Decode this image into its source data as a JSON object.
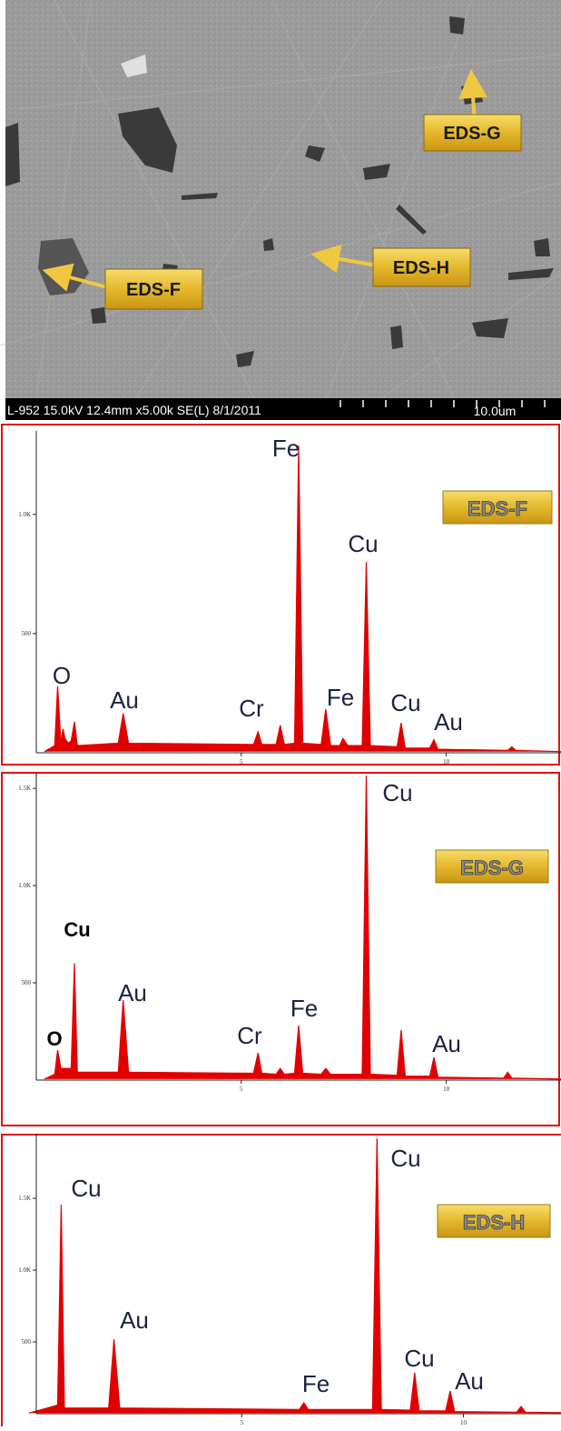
{
  "sem_image": {
    "labels": [
      "EDS-G",
      "EDS-H",
      "EDS-F"
    ],
    "caption": "L-952 15.0kV 12.4mm x5.00k SE(L) 8/1/2011",
    "scale_label": "10.0um"
  },
  "chart_data": [
    {
      "type": "line",
      "title": "EDS-F",
      "x": [
        0.2,
        0.45,
        0.52,
        0.6,
        0.65,
        0.7,
        0.78,
        0.85,
        0.93,
        1.0,
        2.0,
        2.12,
        2.25,
        5.3,
        5.41,
        5.5,
        5.85,
        5.95,
        6.05,
        6.3,
        6.4,
        6.5,
        6.95,
        7.06,
        7.18,
        7.4,
        7.48,
        7.6,
        7.95,
        8.05,
        8.15,
        8.8,
        8.9,
        9.0,
        9.6,
        9.7,
        9.8,
        11.5,
        11.6,
        11.7,
        12.8
      ],
      "series": [
        {
          "color": "#e00000",
          "values": [
            5,
            30,
            280,
            40,
            100,
            60,
            40,
            50,
            130,
            30,
            40,
            165,
            40,
            35,
            88,
            35,
            35,
            115,
            35,
            40,
            1290,
            40,
            35,
            183,
            30,
            30,
            60,
            30,
            30,
            800,
            30,
            25,
            125,
            20,
            20,
            55,
            15,
            10,
            25,
            10,
            5
          ]
        }
      ],
      "xlim": [
        0,
        12.8
      ],
      "xticks": [
        5,
        10
      ],
      "ylim": [
        0,
        1350
      ],
      "yticks": [
        500,
        {
          "value": 1000,
          "label": "1.0K"
        }
      ],
      "peak_labels": [
        "Fe",
        "Cu",
        "O",
        "Au",
        "Cr",
        "Fe",
        "Cu",
        "Au"
      ]
    },
    {
      "type": "line",
      "title": "EDS-G",
      "x": [
        0.2,
        0.45,
        0.52,
        0.6,
        0.85,
        0.93,
        1.0,
        2.0,
        2.12,
        2.25,
        5.3,
        5.41,
        5.5,
        5.85,
        5.95,
        6.05,
        6.3,
        6.4,
        6.5,
        6.95,
        7.06,
        7.18,
        7.95,
        8.05,
        8.15,
        8.8,
        8.9,
        9.0,
        9.6,
        9.7,
        9.8,
        11.4,
        11.5,
        11.6,
        12.8
      ],
      "series": [
        {
          "color": "#e00000",
          "values": [
            5,
            30,
            154,
            60,
            60,
            600,
            40,
            40,
            411,
            40,
            35,
            140,
            35,
            30,
            60,
            30,
            35,
            280,
            35,
            30,
            60,
            30,
            30,
            1565,
            30,
            25,
            257,
            20,
            20,
            117,
            15,
            10,
            40,
            10,
            5
          ]
        }
      ],
      "xlim": [
        0,
        12.8
      ],
      "xticks": [
        5,
        10
      ],
      "ylim": [
        0,
        1580
      ],
      "yticks": [
        500,
        {
          "value": 1000,
          "label": "1.0K"
        },
        {
          "value": 1500,
          "label": "1.5K"
        }
      ],
      "peak_labels": [
        "Cu",
        "O",
        "Au",
        "Cr",
        "Fe",
        "Cu",
        "Au"
      ]
    },
    {
      "type": "line",
      "title": "EDS-H",
      "x": [
        0.2,
        0.5,
        0.85,
        0.93,
        1.0,
        2.0,
        2.12,
        2.25,
        6.3,
        6.4,
        6.5,
        7.95,
        8.05,
        8.15,
        8.8,
        8.9,
        9.0,
        9.6,
        9.7,
        9.8,
        11.2,
        11.3,
        11.4,
        12.8
      ],
      "series": [
        {
          "color": "#e00000",
          "values": [
            5,
            30,
            60,
            1455,
            40,
            40,
            519,
            40,
            30,
            76,
            30,
            30,
            1918,
            30,
            25,
            285,
            20,
            20,
            158,
            15,
            10,
            50,
            10,
            5
          ]
        }
      ],
      "xlim": [
        0,
        12.2
      ],
      "xticks": [
        5,
        10
      ],
      "ylim": [
        0,
        1950
      ],
      "yticks": [
        500,
        {
          "value": 1000,
          "label": "1.0K"
        },
        {
          "value": 1500,
          "label": "1.5K"
        }
      ],
      "peak_labels": [
        "Cu",
        "Au",
        "Fe",
        "Cu",
        "Cu",
        "Au"
      ]
    }
  ]
}
